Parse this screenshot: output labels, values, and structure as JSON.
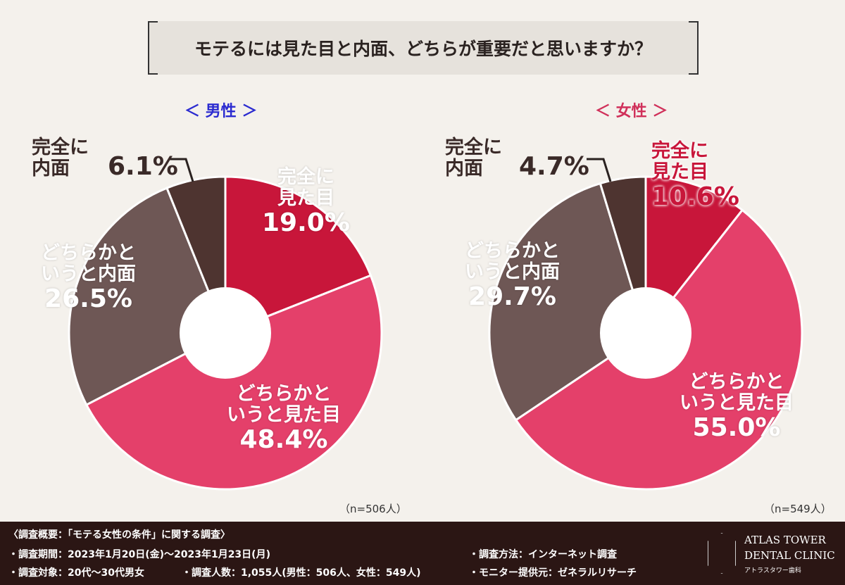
{
  "title": "モテるには見た目と内面、どちらが重要だと思いますか？",
  "colors": {
    "complete_looks": "#c8163a",
    "rather_looks": "#e4406a",
    "rather_inner": "#6e5755",
    "complete_inner": "#4e3430",
    "male_heading": "#2b2bd0",
    "female_heading": "#d0305a"
  },
  "chart_data": [
    {
      "type": "pie",
      "title": "＜ 男性 ＞",
      "sample": "（n=506人）",
      "categories": [
        "完全に見た目",
        "どちらかというと見た目",
        "どちらかというと内面",
        "完全に内面"
      ],
      "values": [
        19.0,
        48.4,
        26.5,
        6.1
      ],
      "labels": [
        {
          "text": "完全に\n見た目",
          "pct": "19.0%"
        },
        {
          "text": "どちらかと\nいうと見た目",
          "pct": "48.4%"
        },
        {
          "text": "どちらかと\nいうと内面",
          "pct": "26.5%"
        },
        {
          "text": "完全に\n内面",
          "pct": "6.1%"
        }
      ]
    },
    {
      "type": "pie",
      "title": "＜ 女性 ＞",
      "sample": "（n=549人）",
      "categories": [
        "完全に見た目",
        "どちらかというと見た目",
        "どちらかというと内面",
        "完全に内面"
      ],
      "values": [
        10.6,
        55.0,
        29.7,
        4.7
      ],
      "labels": [
        {
          "text": "完全に\n見た目",
          "pct": "10.6%"
        },
        {
          "text": "どちらかと\nいうと見た目",
          "pct": "55.0%"
        },
        {
          "text": "どちらかと\nいうと内面",
          "pct": "29.7%"
        },
        {
          "text": "完全に\n内面",
          "pct": "4.7%"
        }
      ]
    }
  ],
  "footer": {
    "heading": "〈調査概要：「モテる女性の条件」に関する調査〉",
    "period": "・調査期間：2023年1月20日(金)〜2023年1月23日(月)",
    "target": "・調査対象：20代〜30代男女",
    "count": "・調査人数：1,055人(男性：506人、女性：549人)",
    "method": "・調査方法：インターネット調査",
    "provider": "・モニター提供元：ゼネラルリサーチ",
    "logo_line1": "ATLAS TOWER",
    "logo_line2": "DENTAL CLINIC",
    "logo_line3": "アトラスタワー歯科"
  }
}
